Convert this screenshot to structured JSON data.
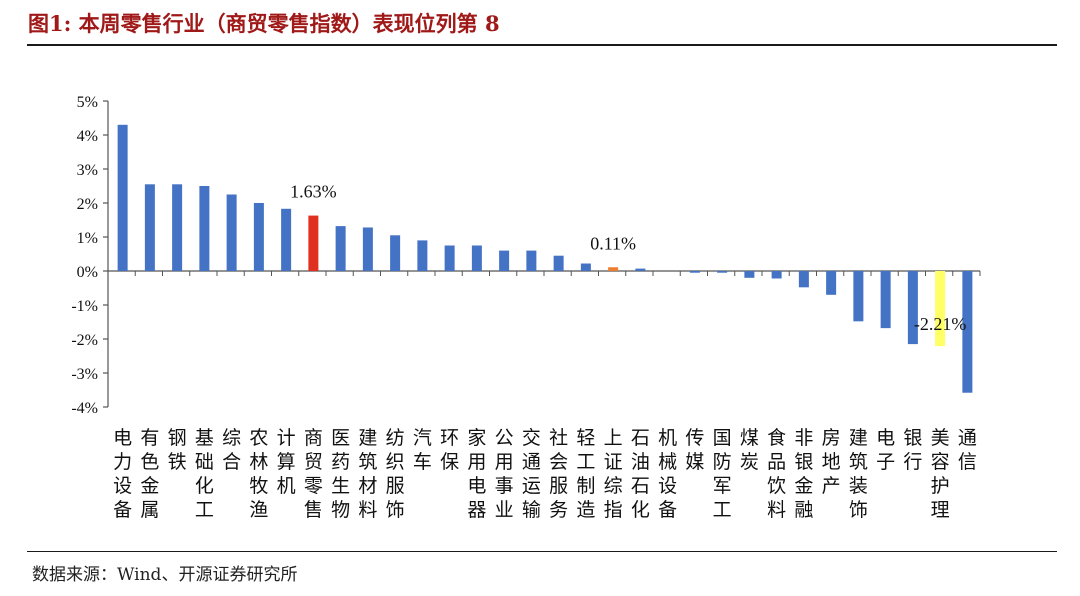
{
  "header": {
    "title": "图1:  本周零售行业（商贸零售指数）表现位列第 8"
  },
  "footer": {
    "source": "数据来源：Wind、开源证券研究所"
  },
  "colors": {
    "default": "#4472c4",
    "retail": "#e03020",
    "highlight_small": "#ed7d31",
    "highlight_yellow": "#ffff66"
  },
  "chart_data": {
    "type": "bar",
    "title": "本周零售行业（商贸零售指数）表现位列第 8",
    "xlabel": "",
    "ylabel": "",
    "ylim": [
      -4,
      5
    ],
    "yticks": [
      5,
      4,
      3,
      2,
      1,
      0,
      -1,
      -2,
      -3,
      -4
    ],
    "ytick_labels": [
      "5%",
      "4%",
      "3%",
      "2%",
      "1%",
      "0%",
      "-1%",
      "-2%",
      "-3%",
      "-4%"
    ],
    "grid": false,
    "categories": [
      "电力设备",
      "有色金属",
      "钢铁",
      "基础化工",
      "综合",
      "农林牧渔",
      "计算机",
      "商贸零售",
      "医药生物",
      "建筑材料",
      "纺织服饰",
      "汽车",
      "环保",
      "家用电器",
      "公用事业",
      "交通运输",
      "社会服务",
      "轻工制造",
      "上证综指",
      "石油石化",
      "机械设备",
      "传媒",
      "国防军工",
      "煤炭",
      "食品饮料",
      "非银金融",
      "房地产",
      "建筑装饰",
      "电子",
      "银行",
      "美容护理",
      "通信"
    ],
    "label_lines": [
      [
        "电",
        "力",
        "设",
        "备"
      ],
      [
        "有",
        "色",
        "金",
        "属"
      ],
      [
        "钢",
        "铁",
        "",
        ""
      ],
      [
        "基",
        "础",
        "化",
        "工"
      ],
      [
        "综",
        "合",
        "",
        ""
      ],
      [
        "农",
        "林",
        "牧",
        "渔"
      ],
      [
        "计",
        "算",
        "机",
        ""
      ],
      [
        "商",
        "贸",
        "零",
        "售"
      ],
      [
        "医",
        "药",
        "生",
        "物"
      ],
      [
        "建",
        "筑",
        "材",
        "料"
      ],
      [
        "纺",
        "织",
        "服",
        "饰"
      ],
      [
        "汽",
        "车",
        "",
        ""
      ],
      [
        "环",
        "保",
        "",
        ""
      ],
      [
        "家",
        "用",
        "电",
        "器"
      ],
      [
        "公",
        "用",
        "事",
        "业"
      ],
      [
        "交",
        "通",
        "运",
        "输"
      ],
      [
        "社",
        "会",
        "服",
        "务"
      ],
      [
        "轻",
        "工",
        "制",
        "造"
      ],
      [
        "上",
        "证",
        "综",
        "指"
      ],
      [
        "石",
        "油",
        "石",
        "化"
      ],
      [
        "机",
        "械",
        "设",
        "备"
      ],
      [
        "传",
        "媒",
        "",
        ""
      ],
      [
        "国",
        "防",
        "军",
        "工"
      ],
      [
        "煤",
        "炭",
        "",
        ""
      ],
      [
        "食",
        "品",
        "饮",
        "料"
      ],
      [
        "非",
        "银",
        "金",
        "融"
      ],
      [
        "房",
        "地",
        "产",
        ""
      ],
      [
        "建",
        "筑",
        "装",
        "饰"
      ],
      [
        "电",
        "子",
        "",
        ""
      ],
      [
        "银",
        "行",
        "",
        ""
      ],
      [
        "美",
        "容",
        "护",
        "理"
      ],
      [
        "通",
        "信",
        "",
        ""
      ]
    ],
    "values": [
      4.3,
      2.55,
      2.55,
      2.5,
      2.25,
      2.0,
      1.83,
      1.63,
      1.32,
      1.28,
      1.05,
      0.9,
      0.75,
      0.75,
      0.6,
      0.6,
      0.45,
      0.22,
      0.11,
      0.07,
      0.0,
      -0.05,
      -0.05,
      -0.2,
      -0.22,
      -0.48,
      -0.7,
      -1.48,
      -1.68,
      -2.15,
      -2.21,
      -3.58
    ],
    "bar_colors": [
      "default",
      "default",
      "default",
      "default",
      "default",
      "default",
      "default",
      "retail",
      "default",
      "default",
      "default",
      "default",
      "default",
      "default",
      "default",
      "default",
      "default",
      "default",
      "highlight_small",
      "default",
      "default",
      "default",
      "default",
      "default",
      "default",
      "default",
      "default",
      "default",
      "default",
      "default",
      "highlight_yellow",
      "default"
    ],
    "annotations": [
      {
        "index": 7,
        "text": "1.63%"
      },
      {
        "index": 18,
        "text": "0.11%"
      },
      {
        "index": 30,
        "text": "-2.21%"
      }
    ]
  }
}
